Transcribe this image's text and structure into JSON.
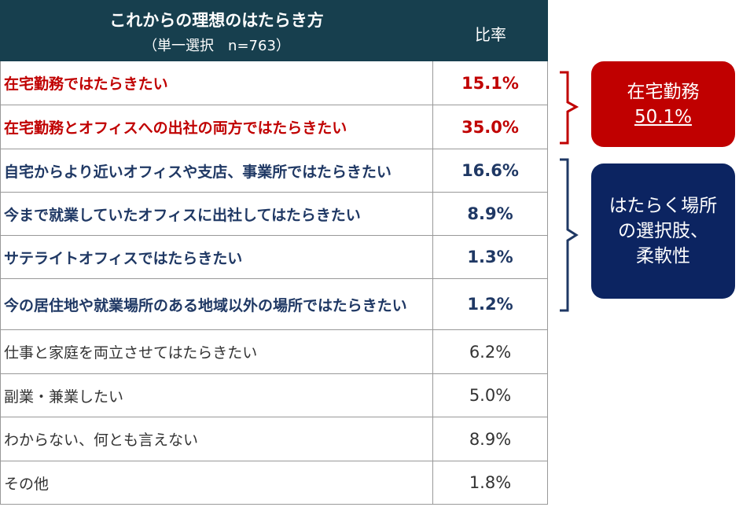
{
  "header": {
    "title": "これからの理想のはたらき方",
    "subtitle": "（単一選択　n=763）",
    "column": "比率"
  },
  "table": {
    "rows": [
      [
        "在宅勤務ではたらきたい",
        "15.1%"
      ],
      [
        "在宅勤務とオフィスへの出社の両方ではたらきたい",
        "35.0%"
      ],
      [
        "自宅からより近いオフィスや支店、事業所ではたらきたい",
        "16.6%"
      ],
      [
        "今まで就業していたオフィスに出社してはたらきたい",
        "8.9%"
      ],
      [
        "サテライトオフィスではたらきたい",
        "1.3%"
      ],
      [
        "今の居住地や就業場所のある地域以外の場所ではたらきたい",
        "1.2%"
      ],
      [
        "仕事と家庭を両立させてはたらきたい",
        "6.2%"
      ],
      [
        "副業・兼業したい",
        "5.0%"
      ],
      [
        "わからない、何とも言えない",
        "8.9%"
      ],
      [
        "その他",
        "1.8%"
      ]
    ]
  },
  "callouts": {
    "remote": {
      "label": "在宅勤務",
      "value": "50.1%"
    },
    "place": {
      "lines": [
        "はたらく場所",
        "の選択肢、",
        "柔軟性"
      ]
    }
  }
}
